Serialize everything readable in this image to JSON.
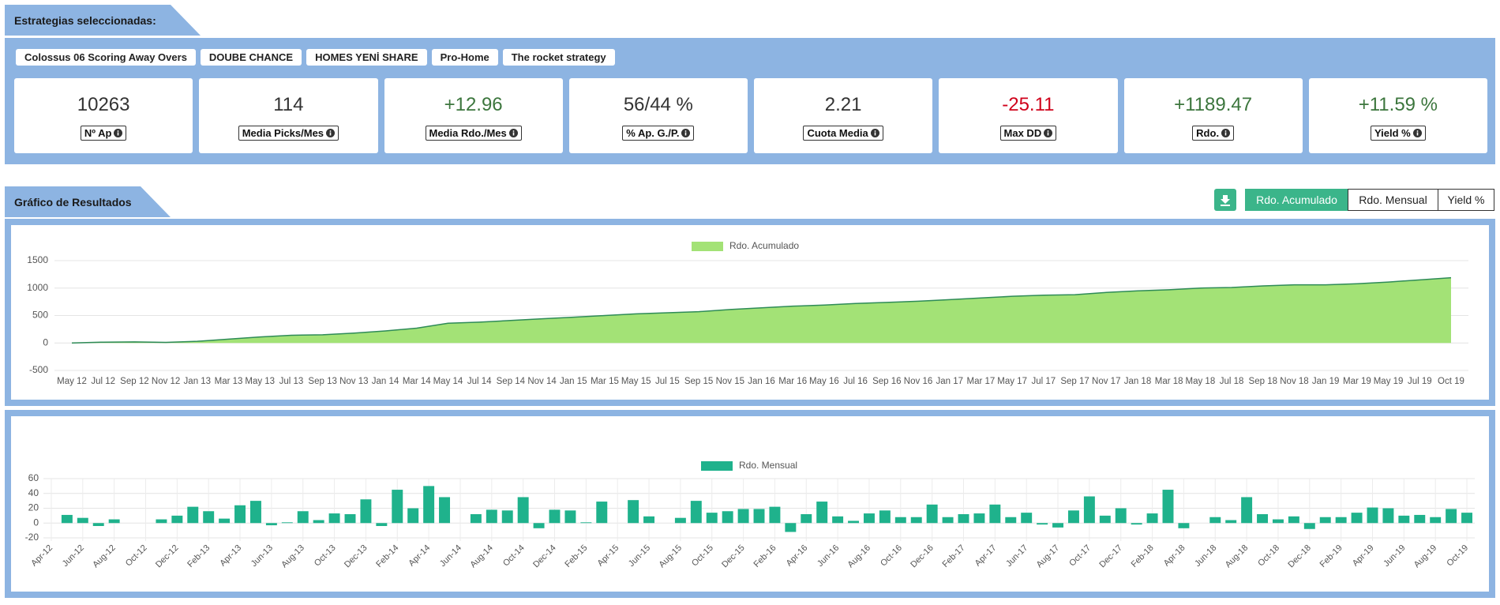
{
  "header": {
    "title": "Estrategias seleccionadas:"
  },
  "strategies": [
    "Colossus 06 Scoring Away Overs",
    "DOUBE CHANCE",
    "HOMES YENİ SHARE",
    "Pro-Home",
    "The rocket strategy"
  ],
  "stats": [
    {
      "value": "10263",
      "label": "Nº Ap",
      "color": "#333333"
    },
    {
      "value": "114",
      "label": "Media Picks/Mes",
      "color": "#333333"
    },
    {
      "value": "+12.96",
      "label": "Media Rdo./Mes",
      "color": "#3c763d"
    },
    {
      "value": "56/44 %",
      "label": "% Ap. G./P.",
      "color": "#333333"
    },
    {
      "value": "2.21",
      "label": "Cuota Media",
      "color": "#333333"
    },
    {
      "value": "-25.11",
      "label": "Max DD",
      "color": "#d0021b"
    },
    {
      "value": "+1189.47",
      "label": "Rdo.",
      "color": "#3c763d"
    },
    {
      "value": "+11.59 %",
      "label": "Yield %",
      "color": "#3c763d"
    }
  ],
  "results": {
    "title": "Gráfico de Resultados",
    "buttons": [
      "Rdo. Acumulado",
      "Rdo. Mensual",
      "Yield %"
    ],
    "active": 0
  },
  "chart_data": [
    {
      "type": "area",
      "categories": [
        "May 12",
        "Jul 12",
        "Sep 12",
        "Nov 12",
        "Jan 13",
        "Mar 13",
        "May 13",
        "Jul 13",
        "Sep 13",
        "Nov 13",
        "Jan 14",
        "Mar 14",
        "May 14",
        "Jul 14",
        "Sep 14",
        "Nov 14",
        "Jan 15",
        "Mar 15",
        "May 15",
        "Jul 15",
        "Sep 15",
        "Nov 15",
        "Jan 16",
        "Mar 16",
        "May 16",
        "Jul 16",
        "Sep 16",
        "Nov 16",
        "Jan 17",
        "Mar 17",
        "May 17",
        "Jul 17",
        "Sep 17",
        "Nov 17",
        "Jan 18",
        "Mar 18",
        "May 18",
        "Jul 18",
        "Sep 18",
        "Nov 18",
        "Jan 19",
        "Mar 19",
        "May 19",
        "Jul 19",
        "Oct 19"
      ],
      "series": [
        {
          "name": "Rdo. Acumulado",
          "color": "#a3e276",
          "line_color": "#2e8b57",
          "values": [
            0,
            15,
            20,
            10,
            30,
            70,
            110,
            140,
            150,
            180,
            220,
            270,
            360,
            380,
            410,
            440,
            470,
            500,
            530,
            550,
            570,
            610,
            640,
            670,
            690,
            720,
            740,
            760,
            790,
            820,
            850,
            870,
            880,
            920,
            950,
            970,
            1000,
            1010,
            1040,
            1060,
            1060,
            1080,
            1110,
            1150,
            1189
          ]
        }
      ],
      "ylim": [
        -500,
        1500
      ],
      "yticks": [
        -500,
        0,
        500,
        1000,
        1500
      ],
      "grid": true
    },
    {
      "type": "bar",
      "categories": [
        "Apr-12",
        null,
        "Jun-12",
        null,
        "Aug-12",
        null,
        "Oct-12",
        null,
        "Dec-12",
        null,
        "Feb-13",
        null,
        "Apr-13",
        null,
        "Jun-13",
        null,
        "Aug-13",
        null,
        "Oct-13",
        null,
        "Dec-13",
        null,
        "Feb-14",
        null,
        "Apr-14",
        null,
        "Jun-14",
        null,
        "Aug-14",
        null,
        "Oct-14",
        null,
        "Dec-14",
        null,
        "Feb-15",
        null,
        "Apr-15",
        null,
        "Jun-15",
        null,
        "Aug-15",
        null,
        "Oct-15",
        null,
        "Dec-15",
        null,
        "Feb-16",
        null,
        "Apr-16",
        null,
        "Jun-16",
        null,
        "Aug-16",
        null,
        "Oct-16",
        null,
        "Dec-16",
        null,
        "Feb-17",
        null,
        "Apr-17",
        null,
        "Jun-17",
        null,
        "Aug-17",
        null,
        "Oct-17",
        null,
        "Dec-17",
        null,
        "Feb-18",
        null,
        "Apr-18",
        null,
        "Jun-18",
        null,
        "Aug-18",
        null,
        "Oct-18",
        null,
        "Dec-18",
        null,
        "Feb-19",
        null,
        "Apr-19",
        null,
        "Jun-19",
        null,
        "Aug-19",
        null,
        "Oct-19"
      ],
      "series": [
        {
          "name": "Rdo. Mensual",
          "color": "#1fb28c",
          "values": [
            0,
            11,
            7,
            -4,
            5,
            0,
            0,
            5,
            10,
            22,
            16,
            6,
            24,
            30,
            -3,
            1,
            16,
            4,
            13,
            12,
            32,
            -4,
            45,
            20,
            50,
            35,
            0,
            12,
            18,
            17,
            35,
            -7,
            18,
            17,
            1,
            29,
            0,
            31,
            9,
            0,
            7,
            30,
            14,
            16,
            19,
            19,
            22,
            -12,
            12,
            29,
            9,
            3,
            13,
            17,
            8,
            8,
            25,
            8,
            12,
            13,
            25,
            8,
            14,
            -2,
            -6,
            17,
            36,
            10,
            20,
            -2,
            13,
            45,
            -7,
            0,
            8,
            4,
            35,
            12,
            5,
            9,
            -8,
            8,
            8,
            14,
            21,
            20,
            10,
            11,
            8,
            19,
            14
          ]
        }
      ],
      "ylim": [
        -20,
        60
      ],
      "yticks": [
        -20,
        0,
        20,
        40,
        60
      ],
      "grid": true
    }
  ]
}
